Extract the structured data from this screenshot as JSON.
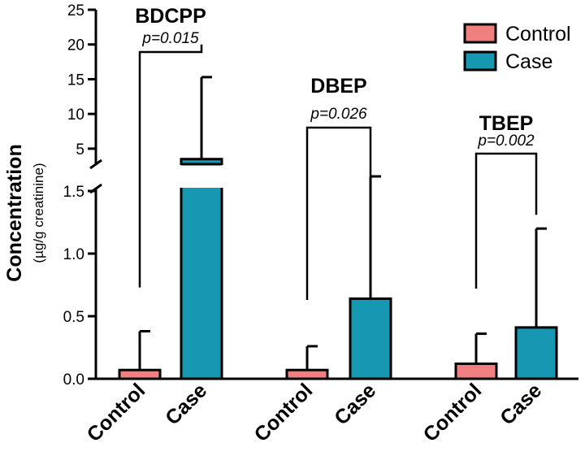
{
  "chart_data": {
    "type": "bar",
    "title": "",
    "ylabel": "Concentration",
    "ylabel_sub": "(µg/g creatinine)",
    "xlabel": "",
    "axis_break": {
      "lower_range": [
        0,
        1.5
      ],
      "upper_range": [
        3,
        25
      ]
    },
    "yticks_lower": [
      "0.0",
      "0.5",
      "1.0",
      "1.5"
    ],
    "yticks_upper": [
      "5",
      "10",
      "15",
      "20",
      "25"
    ],
    "legend": [
      {
        "name": "Control",
        "color": "#f08080"
      },
      {
        "name": "Case",
        "color": "#1797b2"
      }
    ],
    "legend_position": "top-right",
    "groups": [
      {
        "name": "BDCPP",
        "p_value": "p=0.015",
        "categories": [
          "Control",
          "Case"
        ],
        "values": [
          0.07,
          3.5
        ],
        "error_upper": [
          0.38,
          15.3
        ],
        "bracket_bottoms": [
          0.73,
          20.0
        ]
      },
      {
        "name": "DBEP",
        "p_value": "p=0.026",
        "categories": [
          "Control",
          "Case"
        ],
        "values": [
          0.07,
          0.64
        ],
        "error_upper": [
          0.26,
          2.9
        ],
        "bracket_bottoms": [
          0.63,
          2.9
        ]
      },
      {
        "name": "TBEP",
        "p_value": "p=0.002",
        "categories": [
          "Control",
          "Case"
        ],
        "values": [
          0.12,
          0.41
        ],
        "error_upper": [
          0.36,
          1.2
        ],
        "bracket_bottoms": [
          0.72,
          1.31
        ]
      }
    ]
  }
}
